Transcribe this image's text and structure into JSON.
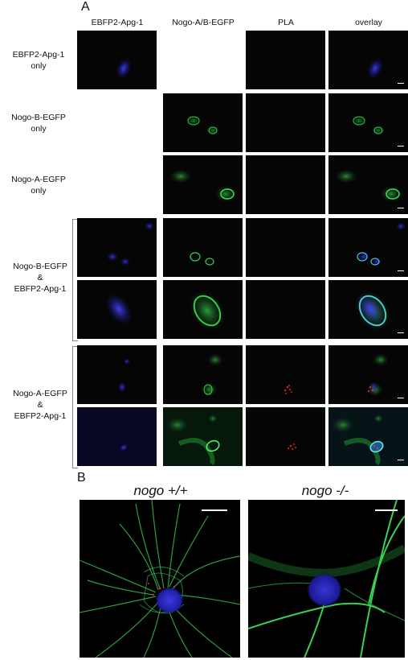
{
  "panel_a": {
    "letter": "A",
    "columns": [
      "EBFP2-Apg-1",
      "Nogo-A/B-EGFP",
      "PLA",
      "overlay"
    ],
    "rows": [
      {
        "label_lines": [
          "EBFP2-Apg-1",
          "only"
        ]
      },
      {
        "label_lines": [
          "Nogo-B-EGFP",
          "only"
        ]
      },
      {
        "label_lines": [
          "Nogo-A-EGFP",
          "only"
        ]
      },
      {
        "label_lines": [
          "Nogo-B-EGFP",
          "&",
          "EBFP2-Apg-1"
        ]
      },
      {
        "label_lines": [
          "Nogo-A-EGFP",
          "&",
          "EBFP2-Apg-1"
        ]
      }
    ]
  },
  "panel_b": {
    "letter": "B",
    "titles": [
      "nogo +/+",
      "nogo -/-"
    ]
  },
  "colors": {
    "blue": "#2a2ad8",
    "green": "#2ee04a",
    "red": "#d22020",
    "cyan": "#4ac8d8",
    "background": "#050505"
  }
}
